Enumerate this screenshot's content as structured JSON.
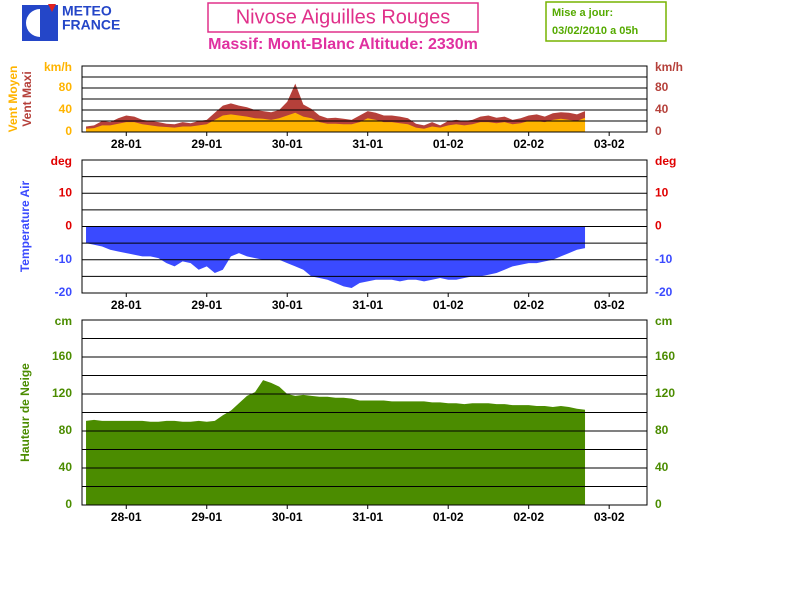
{
  "header": {
    "logo_top": "METEO",
    "logo_bottom": "FRANCE",
    "title": "Nivose Aiguilles Rouges",
    "subtitle": "Massif: Mont-Blanc Altitude: 2330m",
    "update_label": "Mise a jour:",
    "update_time": "03/02/2010 a 05h"
  },
  "chart_data": [
    {
      "type": "area",
      "y_unit": "km/h",
      "x": [
        0,
        0.1,
        0.2,
        0.3,
        0.4,
        0.5,
        0.6,
        0.7,
        0.8,
        0.9,
        1,
        1.1,
        1.2,
        1.3,
        1.4,
        1.5,
        1.6,
        1.7,
        1.8,
        1.9,
        2,
        2.1,
        2.2,
        2.3,
        2.4,
        2.5,
        2.6,
        2.7,
        2.8,
        2.9,
        3,
        3.1,
        3.2,
        3.3,
        3.4,
        3.5,
        3.6,
        3.7,
        3.8,
        3.9,
        4,
        4.1,
        4.2,
        4.3,
        4.4,
        4.5,
        4.6,
        4.7,
        4.8,
        4.9,
        5,
        5.1,
        5.2,
        5.3,
        5.4,
        5.5,
        5.6,
        5.7,
        5.8,
        5.9,
        6,
        6.1,
        6.2
      ],
      "series": [
        {
          "name": "Vent Moyen",
          "color": "#ffb400",
          "values": [
            6,
            7,
            12,
            12,
            15,
            18,
            18,
            14,
            12,
            10,
            9,
            8,
            10,
            10,
            12,
            14,
            22,
            30,
            32,
            30,
            28,
            25,
            24,
            22,
            25,
            30,
            35,
            28,
            25,
            18,
            15,
            15,
            14,
            14,
            18,
            25,
            22,
            18,
            18,
            16,
            14,
            8,
            6,
            10,
            8,
            12,
            14,
            12,
            14,
            18,
            18,
            16,
            18,
            14,
            16,
            20,
            20,
            18,
            22,
            24,
            22,
            20,
            26
          ]
        },
        {
          "name": "Vent Maxi",
          "color": "#b5403a",
          "values": [
            10,
            12,
            20,
            18,
            25,
            30,
            28,
            22,
            20,
            18,
            15,
            14,
            18,
            16,
            20,
            22,
            35,
            48,
            52,
            48,
            45,
            40,
            38,
            36,
            40,
            55,
            88,
            50,
            42,
            30,
            25,
            26,
            24,
            22,
            30,
            38,
            35,
            30,
            30,
            28,
            25,
            15,
            12,
            18,
            12,
            20,
            22,
            20,
            22,
            28,
            30,
            26,
            28,
            22,
            25,
            30,
            32,
            28,
            34,
            36,
            35,
            32,
            38
          ]
        }
      ],
      "xlim": [
        -0.05,
        6.97
      ],
      "xticks": [
        {
          "value": 0.5,
          "label": "28-01"
        },
        {
          "value": 1.5,
          "label": "29-01"
        },
        {
          "value": 2.5,
          "label": "30-01"
        },
        {
          "value": 3.5,
          "label": "31-01"
        },
        {
          "value": 4.5,
          "label": "01-02"
        },
        {
          "value": 5.5,
          "label": "02-02"
        },
        {
          "value": 6.5,
          "label": "03-02"
        }
      ],
      "ylim": [
        0,
        120
      ],
      "yticks": [
        0,
        40,
        80
      ],
      "minor_yticks": [
        20,
        60,
        100
      ],
      "grid": true
    },
    {
      "type": "area",
      "y_unit": "deg",
      "unit_color": "#e00000",
      "x": [
        0,
        0.1,
        0.2,
        0.3,
        0.4,
        0.5,
        0.6,
        0.7,
        0.8,
        0.9,
        1,
        1.1,
        1.2,
        1.3,
        1.4,
        1.5,
        1.6,
        1.7,
        1.8,
        1.9,
        2,
        2.1,
        2.2,
        2.3,
        2.4,
        2.5,
        2.6,
        2.7,
        2.8,
        2.9,
        3,
        3.1,
        3.2,
        3.3,
        3.4,
        3.5,
        3.6,
        3.7,
        3.8,
        3.9,
        4,
        4.1,
        4.2,
        4.3,
        4.4,
        4.5,
        4.6,
        4.7,
        4.8,
        4.9,
        5,
        5.1,
        5.2,
        5.3,
        5.4,
        5.5,
        5.6,
        5.7,
        5.8,
        5.9,
        6,
        6.1,
        6.2
      ],
      "series": [
        {
          "name": "Temperature Air",
          "color": "#3a4aff",
          "values": [
            -5,
            -5.5,
            -6,
            -7,
            -7.5,
            -8,
            -8.5,
            -9,
            -9,
            -9.5,
            -11,
            -12,
            -10.5,
            -11,
            -13,
            -12,
            -14,
            -13,
            -9,
            -8,
            -9,
            -9.5,
            -10,
            -10,
            -10,
            -11,
            -12,
            -13,
            -15,
            -15.5,
            -16,
            -17,
            -18,
            -18.5,
            -17,
            -16.5,
            -16,
            -16,
            -16,
            -16.5,
            -16,
            -16,
            -16.5,
            -16,
            -15.5,
            -16,
            -16,
            -15.5,
            -15,
            -15,
            -14.5,
            -14,
            -13,
            -12,
            -11.5,
            -11,
            -11,
            -10.5,
            -10,
            -9,
            -8,
            -7,
            -6.5
          ]
        }
      ],
      "xlim": [
        -0.05,
        6.97
      ],
      "xticks": [
        {
          "value": 0.5,
          "label": "28-01"
        },
        {
          "value": 1.5,
          "label": "29-01"
        },
        {
          "value": 2.5,
          "label": "30-01"
        },
        {
          "value": 3.5,
          "label": "31-01"
        },
        {
          "value": 4.5,
          "label": "01-02"
        },
        {
          "value": 5.5,
          "label": "02-02"
        },
        {
          "value": 6.5,
          "label": "03-02"
        }
      ],
      "ylim": [
        -20,
        20
      ],
      "yticks": [
        -20,
        -10,
        0,
        10
      ],
      "minor_yticks": [
        -15,
        -5,
        5,
        15
      ],
      "grid": true
    },
    {
      "type": "area",
      "y_unit": "cm",
      "x": [
        0,
        0.1,
        0.2,
        0.3,
        0.4,
        0.5,
        0.6,
        0.7,
        0.8,
        0.9,
        1,
        1.1,
        1.2,
        1.3,
        1.4,
        1.5,
        1.6,
        1.7,
        1.8,
        1.9,
        2,
        2.1,
        2.2,
        2.3,
        2.4,
        2.5,
        2.6,
        2.7,
        2.8,
        2.9,
        3,
        3.1,
        3.2,
        3.3,
        3.4,
        3.5,
        3.6,
        3.7,
        3.8,
        3.9,
        4,
        4.1,
        4.2,
        4.3,
        4.4,
        4.5,
        4.6,
        4.7,
        4.8,
        4.9,
        5,
        5.1,
        5.2,
        5.3,
        5.4,
        5.5,
        5.6,
        5.7,
        5.8,
        5.9,
        6,
        6.1,
        6.2
      ],
      "series": [
        {
          "name": "Hauteur de Neige",
          "color": "#4b8c00",
          "values": [
            91,
            92,
            91,
            91,
            91,
            91,
            91,
            91,
            90,
            90,
            91,
            91,
            90,
            90,
            91,
            90,
            91,
            97,
            102,
            110,
            118,
            122,
            135,
            132,
            128,
            120,
            118,
            119,
            118,
            117,
            117,
            116,
            116,
            115,
            113,
            113,
            113,
            113,
            112,
            112,
            112,
            112,
            112,
            111,
            111,
            110,
            110,
            109,
            110,
            110,
            110,
            109,
            109,
            108,
            108,
            108,
            107,
            107,
            106,
            107,
            106,
            104,
            103
          ]
        }
      ],
      "xlim": [
        -0.05,
        6.97
      ],
      "xticks": [
        {
          "value": 0.5,
          "label": "28-01"
        },
        {
          "value": 1.5,
          "label": "29-01"
        },
        {
          "value": 2.5,
          "label": "30-01"
        },
        {
          "value": 3.5,
          "label": "31-01"
        },
        {
          "value": 4.5,
          "label": "01-02"
        },
        {
          "value": 5.5,
          "label": "02-02"
        },
        {
          "value": 6.5,
          "label": "03-02"
        }
      ],
      "ylim": [
        0,
        200
      ],
      "yticks": [
        0,
        40,
        80,
        120,
        160
      ],
      "minor_yticks": [
        20,
        60,
        100,
        140,
        180
      ],
      "grid": true
    }
  ]
}
